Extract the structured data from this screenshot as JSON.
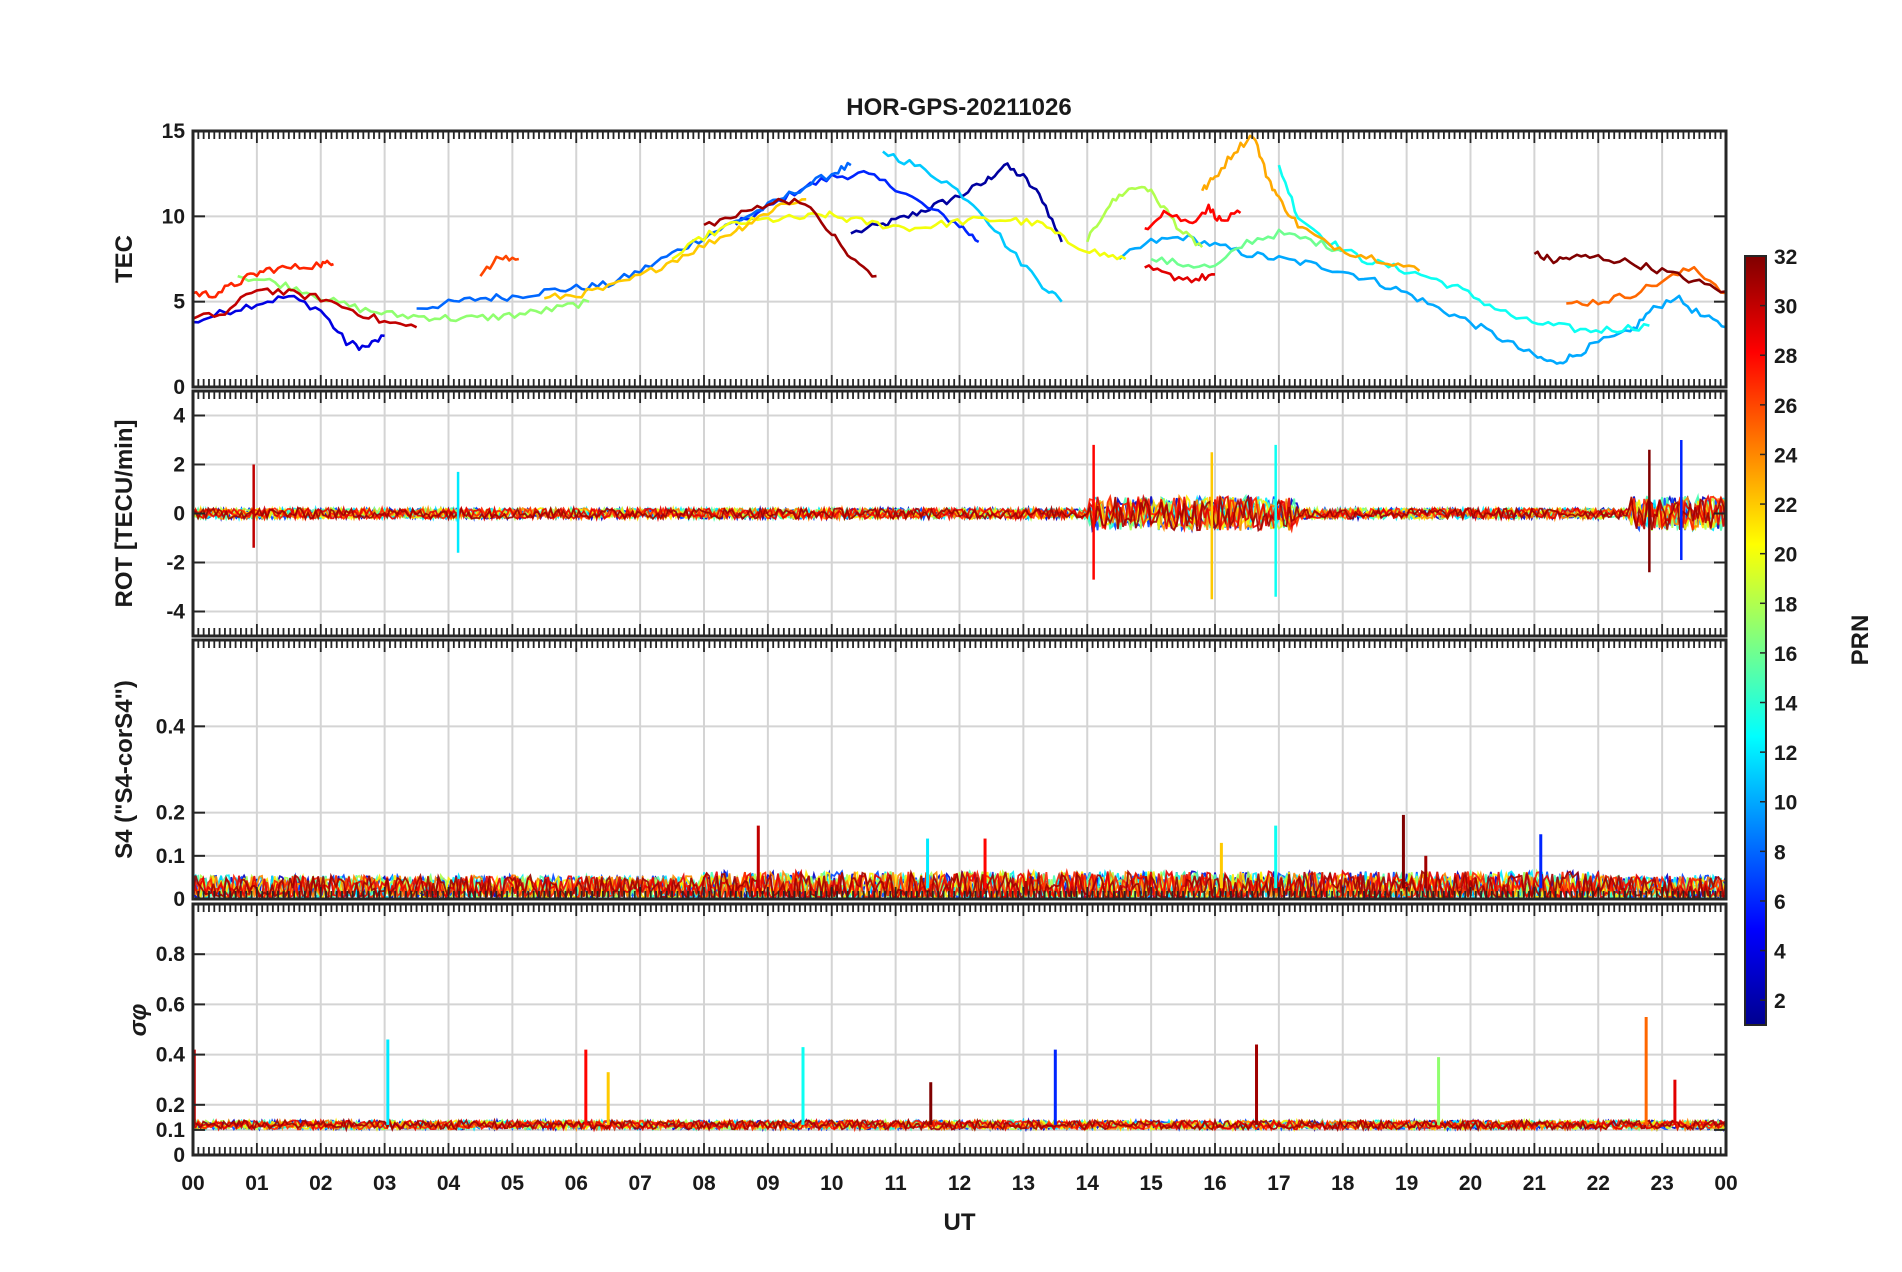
{
  "chart_data": [
    {
      "type": "line",
      "title": "HOR-GPS-20211026",
      "ylabel": "TEC",
      "xlim": [
        0,
        24
      ],
      "ylim": [
        0,
        15
      ],
      "yticks": [
        "0",
        "5",
        "10",
        "15"
      ],
      "grid": true,
      "series": [
        {
          "prn": 2,
          "x": [
            10.3,
            10.8,
            11.2,
            11.6,
            12.0,
            12.4,
            12.7,
            13.0,
            13.3,
            13.6
          ],
          "y": [
            9.0,
            9.5,
            10.0,
            10.6,
            11.2,
            12.0,
            13.0,
            12.3,
            11.0,
            8.5
          ]
        },
        {
          "prn": 4,
          "x": [
            0.0,
            0.5,
            1.0,
            1.5,
            2.0,
            2.4,
            2.7,
            3.0
          ],
          "y": [
            3.8,
            4.4,
            4.9,
            5.3,
            4.5,
            2.6,
            2.3,
            3.0
          ]
        },
        {
          "prn": 6,
          "x": [
            8.5,
            9.0,
            9.5,
            10.0,
            10.5,
            11.0,
            11.5,
            12.0,
            12.3
          ],
          "y": [
            9.5,
            10.5,
            11.6,
            12.3,
            12.5,
            11.7,
            10.5,
            9.5,
            8.5
          ]
        },
        {
          "prn": 8,
          "x": [
            3.5,
            4.0,
            4.5,
            5.0,
            5.5,
            6.0,
            6.5,
            7.0,
            7.5,
            8.0,
            8.5,
            9.0,
            9.5,
            10.0,
            10.3
          ],
          "y": [
            4.6,
            4.9,
            5.2,
            5.3,
            5.6,
            5.8,
            6.0,
            6.8,
            7.8,
            8.8,
            9.7,
            10.6,
            11.6,
            12.5,
            13.0
          ]
        },
        {
          "prn": 10,
          "x": [
            14.5,
            15.0,
            15.5,
            16.0,
            16.5,
            17.0,
            17.5,
            18.0,
            18.5,
            19.0,
            19.5,
            20.0,
            20.5,
            21.0,
            21.3,
            21.6,
            22.0,
            22.5,
            22.8,
            23.2,
            23.6,
            24.0
          ],
          "y": [
            7.5,
            8.5,
            8.8,
            8.3,
            7.8,
            7.5,
            7.2,
            6.8,
            6.2,
            5.5,
            4.6,
            3.8,
            2.8,
            1.8,
            1.4,
            1.8,
            2.6,
            3.2,
            4.4,
            5.3,
            4.2,
            3.5
          ]
        },
        {
          "prn": 11,
          "x": [
            10.8,
            11.3,
            11.8,
            12.3,
            12.8,
            13.3,
            13.6
          ],
          "y": [
            13.8,
            13.0,
            12.0,
            10.5,
            8.0,
            6.0,
            5.0
          ]
        },
        {
          "prn": 13,
          "x": [
            17.0,
            17.3,
            17.8,
            18.3,
            18.8,
            19.3,
            19.8,
            20.3,
            20.8,
            21.3,
            21.8,
            22.3,
            22.8
          ],
          "y": [
            13.0,
            10.0,
            8.5,
            7.5,
            7.0,
            6.5,
            5.8,
            4.8,
            3.9,
            3.6,
            3.3,
            3.4,
            3.6
          ]
        },
        {
          "prn": 16,
          "x": [
            15.0,
            15.5,
            16.0,
            16.5,
            17.0,
            17.5,
            18.0
          ],
          "y": [
            7.5,
            7.2,
            7.0,
            8.5,
            9.0,
            8.6,
            8.0
          ]
        },
        {
          "prn": 17,
          "x": [
            0.7,
            1.2,
            1.7,
            2.2,
            2.7,
            3.2,
            3.7,
            4.2,
            4.7,
            5.2,
            5.7,
            6.2
          ],
          "y": [
            6.5,
            6.2,
            5.7,
            5.0,
            4.5,
            4.2,
            4.1,
            4.0,
            4.1,
            4.3,
            4.6,
            5.0
          ]
        },
        {
          "prn": 18,
          "x": [
            14.0,
            14.3,
            14.6,
            14.9,
            15.2,
            15.5,
            15.8
          ],
          "y": [
            8.5,
            10.5,
            11.5,
            11.8,
            10.5,
            9.0,
            8.2
          ]
        },
        {
          "prn": 20,
          "x": [
            7.5,
            8.0,
            8.5,
            9.0,
            9.5,
            9.9,
            10.3,
            10.8,
            11.3,
            11.8,
            12.3,
            12.8,
            13.3,
            13.7,
            14.2,
            14.6
          ],
          "y": [
            7.5,
            8.8,
            9.6,
            9.8,
            9.9,
            10.1,
            9.8,
            9.5,
            9.3,
            9.6,
            9.8,
            9.8,
            9.5,
            8.5,
            7.8,
            7.5
          ]
        },
        {
          "prn": 22,
          "x": [
            5.5,
            6.0,
            6.5,
            7.0,
            7.5,
            8.0,
            8.5,
            8.8,
            9.2,
            9.6
          ],
          "y": [
            5.2,
            5.4,
            5.8,
            6.5,
            7.4,
            8.3,
            9.2,
            9.8,
            10.7,
            11.0
          ]
        },
        {
          "prn": 23,
          "x": [
            15.8,
            16.0,
            16.3,
            16.6,
            16.8,
            17.0,
            17.3,
            17.7,
            18.2,
            18.7,
            19.2
          ],
          "y": [
            11.5,
            12.3,
            13.8,
            14.8,
            12.5,
            11.0,
            9.5,
            8.5,
            7.8,
            7.4,
            6.8
          ]
        },
        {
          "prn": 25,
          "x": [
            21.5,
            22.0,
            22.5,
            23.0,
            23.5,
            24.0
          ],
          "y": [
            4.9,
            5.0,
            5.4,
            6.2,
            7.0,
            5.5
          ]
        },
        {
          "prn": 26,
          "x": [
            4.5,
            4.8,
            5.1
          ],
          "y": [
            6.5,
            7.6,
            7.5
          ]
        },
        {
          "prn": 27,
          "x": [
            0.0,
            0.3,
            0.6,
            0.9,
            1.2,
            1.6,
            2.0,
            2.2
          ],
          "y": [
            5.5,
            5.4,
            5.9,
            6.5,
            6.9,
            7.0,
            7.2,
            7.2
          ]
        },
        {
          "prn": 28,
          "x": [
            14.9,
            15.2,
            15.6,
            15.9,
            16.1,
            16.4
          ],
          "y": [
            9.3,
            10.3,
            9.6,
            10.5,
            9.7,
            10.2
          ]
        },
        {
          "prn": 29,
          "x": [
            14.9,
            15.3,
            15.7,
            16.0
          ],
          "y": [
            7.0,
            6.5,
            6.3,
            6.6
          ]
        },
        {
          "prn": 30,
          "x": [
            0.0,
            0.5,
            1.0,
            1.5,
            2.0,
            2.5,
            3.0,
            3.5
          ],
          "y": [
            4.0,
            4.3,
            5.8,
            5.5,
            5.2,
            4.5,
            3.8,
            3.5
          ]
        },
        {
          "prn": 31,
          "x": [
            8.0,
            8.5,
            9.0,
            9.5,
            10.0,
            10.3,
            10.7
          ],
          "y": [
            9.5,
            10.0,
            10.8,
            11.0,
            9.0,
            7.5,
            6.5
          ]
        },
        {
          "prn": 32,
          "x": [
            21.0,
            21.3,
            21.6,
            22.0,
            22.5,
            23.0,
            23.5,
            24.0
          ],
          "y": [
            7.8,
            7.4,
            7.6,
            7.6,
            7.3,
            6.8,
            6.2,
            5.6
          ]
        }
      ]
    },
    {
      "type": "line",
      "ylabel": "ROT [TECU/min]",
      "xlim": [
        0,
        24
      ],
      "ylim": [
        -5,
        5
      ],
      "yticks": [
        "-4",
        "-2",
        "0",
        "2",
        "4"
      ],
      "grid": true,
      "note_values": "dense noise around 0; larger bursts near 14-17 UT and 22.5-24 UT",
      "peaks": [
        {
          "x": 0.95,
          "min": -1.4,
          "max": 2.0
        },
        {
          "x": 4.15,
          "min": -1.6,
          "max": 1.7
        },
        {
          "x": 14.1,
          "min": -2.7,
          "max": 2.8
        },
        {
          "x": 15.95,
          "min": -3.5,
          "max": 2.5
        },
        {
          "x": 16.95,
          "min": -3.4,
          "max": 2.8
        },
        {
          "x": 22.8,
          "min": -2.4,
          "max": 2.6
        },
        {
          "x": 23.3,
          "min": -1.9,
          "max": 3.0
        }
      ]
    },
    {
      "type": "line",
      "ylabel": "S4 (\"S4-corS4\")",
      "xlim": [
        0,
        24
      ],
      "ylim": [
        0,
        0.6
      ],
      "yticks": [
        "0",
        "0.1",
        "0.2",
        "0.4"
      ],
      "grid": true,
      "peaks": [
        {
          "x": 8.85,
          "max": 0.17
        },
        {
          "x": 11.5,
          "max": 0.14
        },
        {
          "x": 12.4,
          "max": 0.14
        },
        {
          "x": 16.1,
          "max": 0.13
        },
        {
          "x": 16.95,
          "max": 0.17
        },
        {
          "x": 18.95,
          "max": 0.195
        },
        {
          "x": 21.1,
          "max": 0.15
        },
        {
          "x": 19.3,
          "max": 0.1
        }
      ]
    },
    {
      "type": "line",
      "ylabel": "σφ",
      "xlabel": "UT",
      "xlim": [
        0,
        24
      ],
      "ylim": [
        0,
        1
      ],
      "yticks": [
        "0",
        "0.1",
        "0.2",
        "0.4",
        "0.6",
        "0.8"
      ],
      "xticks": [
        "00",
        "01",
        "02",
        "03",
        "04",
        "05",
        "06",
        "07",
        "08",
        "09",
        "10",
        "11",
        "12",
        "13",
        "14",
        "15",
        "16",
        "17",
        "18",
        "19",
        "20",
        "21",
        "22",
        "23",
        "00"
      ],
      "grid": true,
      "peaks": [
        {
          "x": 0.02,
          "max": 0.42
        },
        {
          "x": 3.05,
          "max": 0.46
        },
        {
          "x": 6.15,
          "max": 0.42
        },
        {
          "x": 6.5,
          "max": 0.33
        },
        {
          "x": 9.55,
          "max": 0.43
        },
        {
          "x": 11.55,
          "max": 0.29
        },
        {
          "x": 13.5,
          "max": 0.42
        },
        {
          "x": 16.65,
          "max": 0.44
        },
        {
          "x": 19.5,
          "max": 0.39
        },
        {
          "x": 22.75,
          "max": 0.55
        },
        {
          "x": 23.2,
          "max": 0.3
        }
      ]
    }
  ],
  "colorbar": {
    "label": "PRN",
    "range": [
      1,
      32
    ],
    "ticks": [
      "2",
      "4",
      "6",
      "8",
      "10",
      "12",
      "14",
      "16",
      "18",
      "20",
      "22",
      "24",
      "26",
      "28",
      "30",
      "32"
    ]
  }
}
